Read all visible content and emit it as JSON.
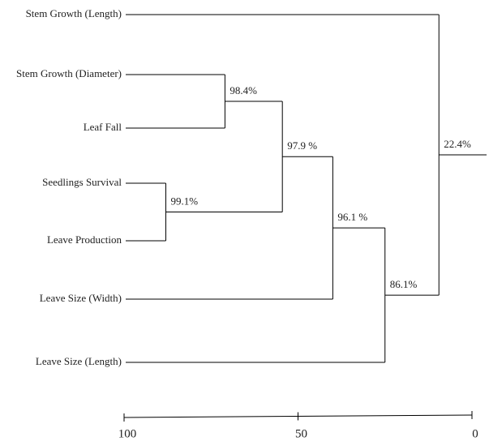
{
  "chart_data": {
    "type": "dendrogram",
    "leaves": [
      "Stem Growth (Length)",
      "Stem Growth (Diameter)",
      "Leaf Fall",
      "Seedlings Survival",
      "Leave Production",
      "Leave Size (Width)",
      "Leave Size (Length)"
    ],
    "merges": [
      {
        "children": [
          1,
          2
        ],
        "height": 71,
        "label": "98.4%"
      },
      {
        "children": [
          3,
          4
        ],
        "height": 88,
        "label": "99.1%"
      },
      {
        "children": [
          7,
          8
        ],
        "height": 54.5,
        "label": "97.9 %"
      },
      {
        "children": [
          9,
          5
        ],
        "height": 40,
        "label": "96.1 %"
      },
      {
        "children": [
          10,
          6
        ],
        "height": 25,
        "label": "86.1%"
      },
      {
        "children": [
          0,
          11
        ],
        "height": 9.5,
        "label": "22.4%"
      }
    ],
    "xlim": [
      100,
      0
    ],
    "xticks": [
      100,
      50,
      0
    ],
    "color": "#000000"
  }
}
